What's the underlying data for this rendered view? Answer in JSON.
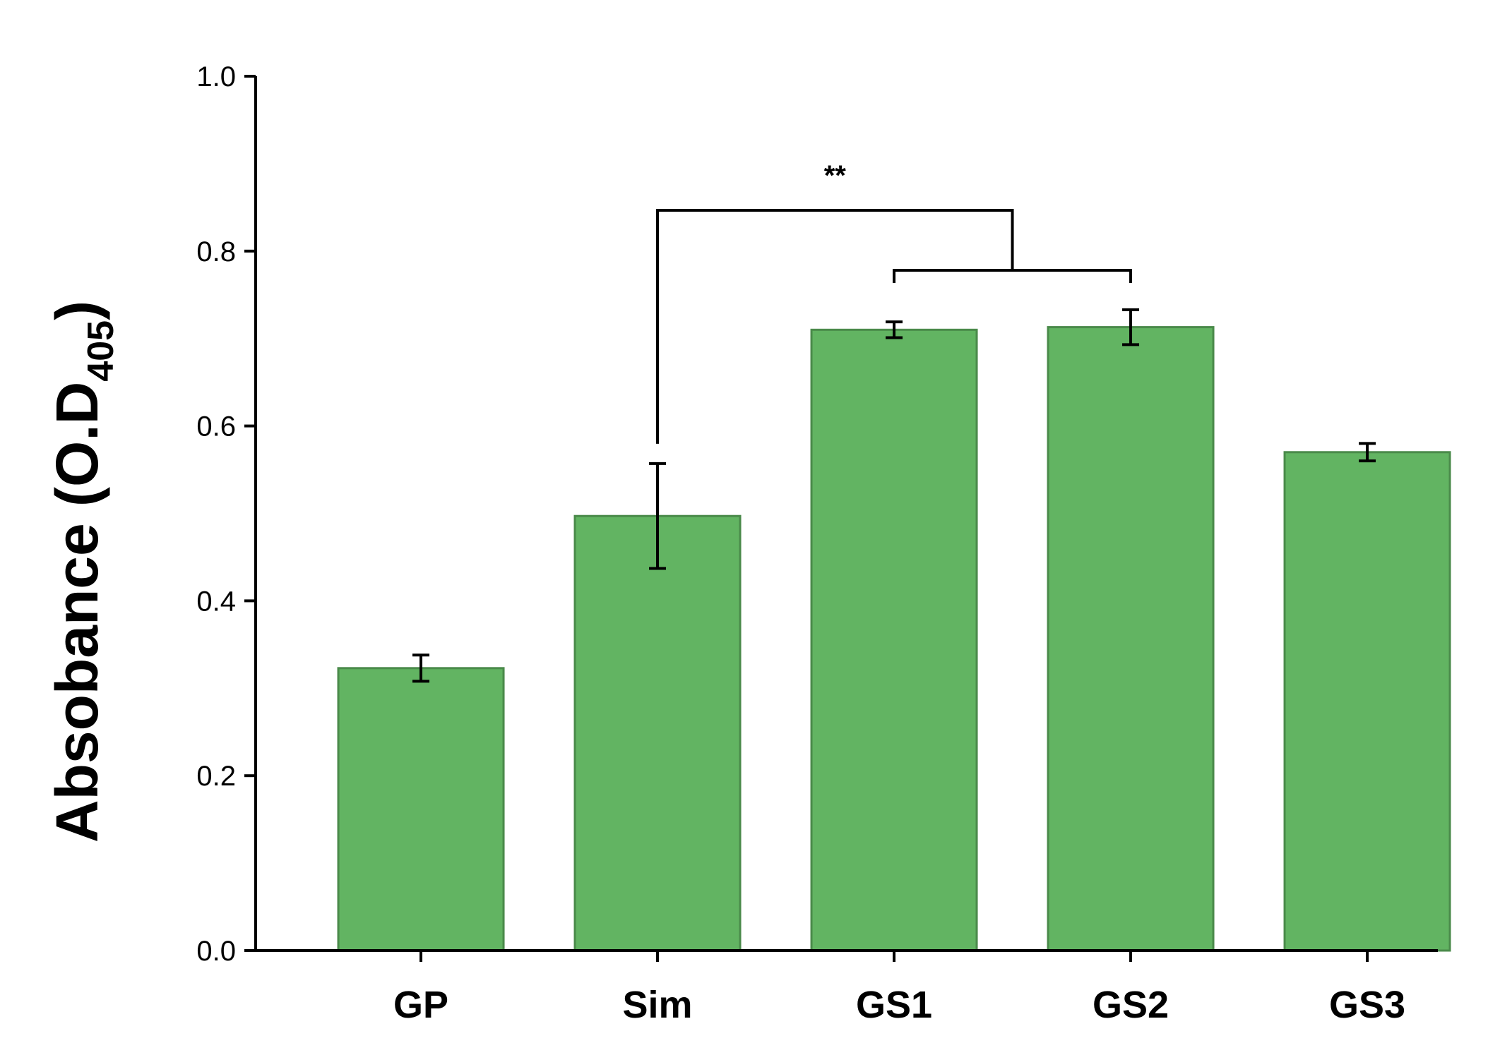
{
  "chart_data": {
    "type": "bar",
    "title": "",
    "xlabel": "",
    "ylabel": "Absobance (O.D",
    "ylabel_subscript": "405",
    "ylabel_close": ")",
    "ylim": [
      0,
      1.0
    ],
    "yticks": [
      "0.0",
      "0.2",
      "0.4",
      "0.6",
      "0.8",
      "1.0"
    ],
    "grid": false,
    "categories": [
      "GP",
      "Sim",
      "GS1",
      "GS2",
      "GS3"
    ],
    "values": [
      0.323,
      0.497,
      0.71,
      0.713,
      0.57
    ],
    "errors": [
      0.015,
      0.06,
      0.009,
      0.02,
      0.01
    ],
    "bar_color": "#62b462",
    "bar_edge_color": "#4a8a4a",
    "annotation": {
      "text": "**",
      "from": "Sim",
      "to_group": [
        "GS1",
        "GS2"
      ]
    }
  }
}
